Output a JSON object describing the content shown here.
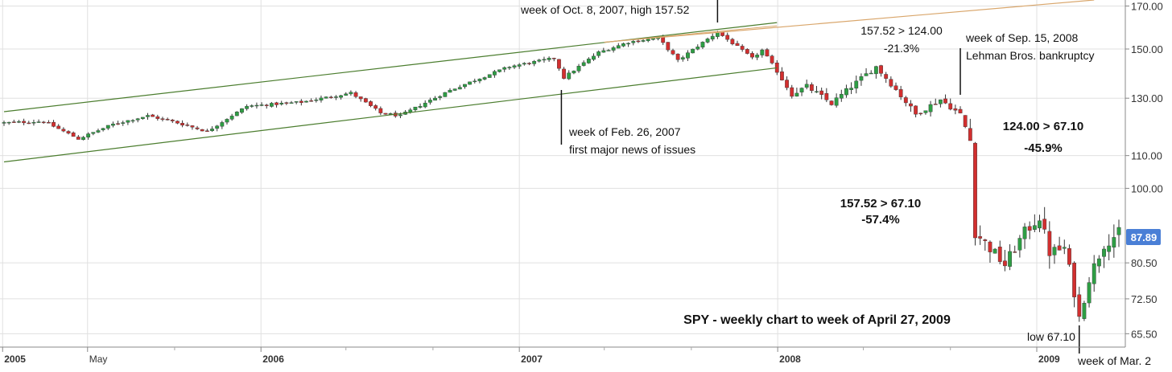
{
  "chart_data": {
    "type": "candlestick",
    "title": "SPY - weekly chart to week of April 27, 2009",
    "y_scale": "log",
    "ylim": [
      63,
      173
    ],
    "y_ticks": [
      "170.00",
      "150.00",
      "130.00",
      "110.00",
      "100.00",
      "80.50",
      "72.50",
      "65.50"
    ],
    "last_price_label": "87.89",
    "x_range": [
      "2005-01-03",
      "2009-04-27"
    ],
    "x_ticks": [
      {
        "label": "2005",
        "date": "2005-01-01",
        "bold": true
      },
      {
        "label": "May",
        "date": "2005-05-01",
        "bold": false
      },
      {
        "label": "2006",
        "date": "2006-01-01",
        "bold": true
      },
      {
        "label": "2007",
        "date": "2007-01-01",
        "bold": true
      },
      {
        "label": "2008",
        "date": "2008-01-01",
        "bold": true
      },
      {
        "label": "2009",
        "date": "2009-01-01",
        "bold": true
      }
    ],
    "x_minor_ticks": [
      "2005-09-01",
      "2006-05-01",
      "2006-09-01",
      "2007-05-01",
      "2007-09-01",
      "2008-05-01",
      "2008-09-01"
    ],
    "price_path": [
      [
        "2005-01-03",
        121
      ],
      [
        "2005-02-28",
        121.5
      ],
      [
        "2005-04-18",
        115.5
      ],
      [
        "2005-06-06",
        120.5
      ],
      [
        "2005-07-25",
        123.5
      ],
      [
        "2005-08-29",
        121.5
      ],
      [
        "2005-10-17",
        118
      ],
      [
        "2005-12-12",
        127
      ],
      [
        "2006-02-27",
        128.5
      ],
      [
        "2006-05-08",
        132
      ],
      [
        "2006-06-19",
        124.5
      ],
      [
        "2006-07-17",
        123.5
      ],
      [
        "2006-09-25",
        133
      ],
      [
        "2006-12-18",
        142.5
      ],
      [
        "2007-02-19",
        146
      ],
      [
        "2007-03-05",
        138
      ],
      [
        "2007-04-23",
        148.5
      ],
      [
        "2007-06-04",
        153
      ],
      [
        "2007-07-16",
        155
      ],
      [
        "2007-08-13",
        145
      ],
      [
        "2007-10-08",
        157.52
      ],
      [
        "2007-11-26",
        146
      ],
      [
        "2007-12-10",
        149.5
      ],
      [
        "2008-01-21",
        131.5
      ],
      [
        "2008-02-11",
        134.5
      ],
      [
        "2008-03-17",
        128
      ],
      [
        "2008-05-19",
        142.5
      ],
      [
        "2008-07-14",
        124
      ],
      [
        "2008-08-18",
        129.5
      ],
      [
        "2008-09-15",
        124
      ],
      [
        "2008-09-29",
        115
      ],
      [
        "2008-10-06",
        88
      ],
      [
        "2008-11-17",
        80
      ],
      [
        "2008-12-15",
        88
      ],
      [
        "2009-01-05",
        92
      ],
      [
        "2009-01-19",
        83
      ],
      [
        "2009-02-09",
        84
      ],
      [
        "2009-02-23",
        74
      ],
      [
        "2009-03-02",
        68.5
      ],
      [
        "2009-03-16",
        77
      ],
      [
        "2009-04-06",
        85
      ],
      [
        "2009-04-27",
        87.89
      ]
    ],
    "channel_lines": [
      {
        "name": "upper-channel",
        "from": [
          "2005-01-03",
          125
        ],
        "to": [
          "2007-12-31",
          162
        ]
      },
      {
        "name": "lower-channel",
        "from": [
          "2005-01-03",
          108
        ],
        "to": [
          "2007-12-31",
          142
        ]
      },
      {
        "name": "upper-extension",
        "from": [
          "2007-05-01",
          153
        ],
        "to": [
          "2009-03-23",
          173
        ]
      }
    ],
    "annotations": [
      {
        "id": "oct2007",
        "lines": [
          "week of Oct. 8, 2007, high 157.52"
        ]
      },
      {
        "id": "feb2007",
        "lines": [
          "week of Feb. 26, 2007",
          "first major news of issues"
        ]
      },
      {
        "id": "drop1",
        "lines": [
          "157.52 > 124.00",
          "-21.3%"
        ]
      },
      {
        "id": "sep2008",
        "lines": [
          "week of Sep. 15, 2008",
          "Lehman Bros. bankruptcy"
        ]
      },
      {
        "id": "drop2",
        "lines": [
          "124.00 > 67.10",
          "-45.9%"
        ]
      },
      {
        "id": "drop3",
        "lines": [
          "157.52 > 67.10",
          "-57.4%"
        ]
      },
      {
        "id": "low",
        "lines": [
          "low 67.10"
        ]
      },
      {
        "id": "mar2009",
        "lines": [
          "week of Mar. 2"
        ]
      }
    ],
    "colors": {
      "up": "#2e9e44",
      "down": "#d22f2f",
      "channel": "#4b7d2e",
      "extension": "#d9a66b",
      "price_tag": "#4a7fd6",
      "grid": "#e0e0e0"
    }
  }
}
